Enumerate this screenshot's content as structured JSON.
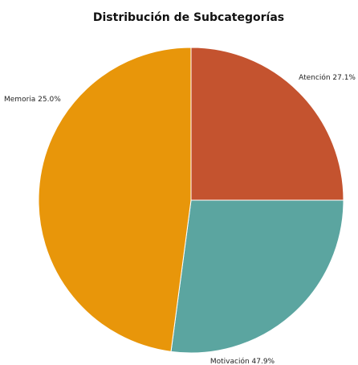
{
  "chart_data": {
    "type": "pie",
    "title": "Distribución de Subcategorías",
    "start_angle_deg": 0,
    "direction": "clockwise",
    "slices": [
      {
        "label": "Atención",
        "value": 27.1,
        "percent_label": "27.1%",
        "color": "#5ba5a0"
      },
      {
        "label": "Motivación",
        "value": 47.9,
        "percent_label": "47.9%",
        "color": "#e8960a"
      },
      {
        "label": "Memoria",
        "value": 25.0,
        "percent_label": "25.0%",
        "color": "#c4532f"
      }
    ]
  }
}
